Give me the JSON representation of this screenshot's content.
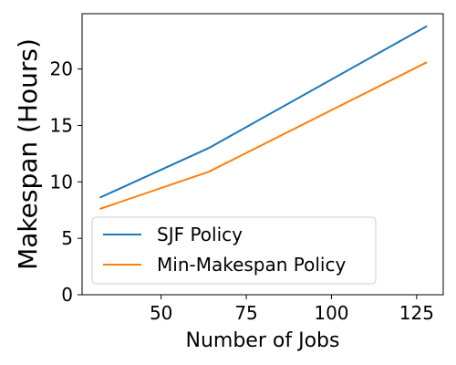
{
  "chart_data": {
    "type": "line",
    "xlabel": "Number of Jobs",
    "ylabel": "Makespan (Hours)",
    "xlim": [
      26.8,
      132.8
    ],
    "ylim": [
      0,
      24.9
    ],
    "x_ticks": [
      50,
      75,
      100,
      125
    ],
    "y_ticks": [
      0,
      5,
      10,
      15,
      20
    ],
    "grid": false,
    "legend_position": "lower-left",
    "x": [
      32,
      64,
      128
    ],
    "series": [
      {
        "name": "SJF Policy",
        "color": "#1f77b4",
        "values": [
          8.6,
          13.0,
          23.8
        ]
      },
      {
        "name": "Min-Makespan Policy",
        "color": "#ff7f0e",
        "values": [
          7.6,
          10.9,
          20.6
        ]
      }
    ]
  }
}
